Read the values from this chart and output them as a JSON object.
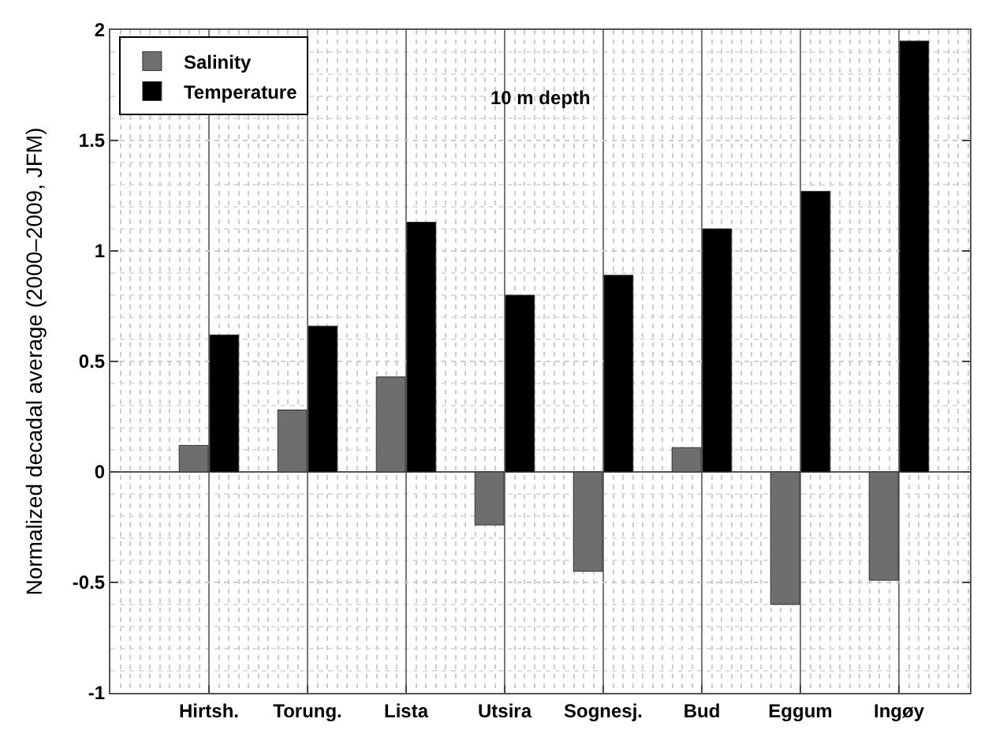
{
  "chart_data": {
    "type": "bar",
    "ylabel": "Normalized decadal average (2000–2009, JFM)",
    "annotations": [
      "10 m depth"
    ],
    "categories": [
      "Hirtsh.",
      "Torung.",
      "Lista",
      "Utsira",
      "Sognesj.",
      "Bud",
      "Eggum",
      "Ingøy"
    ],
    "series": [
      {
        "name": "Salinity",
        "color": "#6e6e6e",
        "values": [
          0.12,
          0.28,
          0.43,
          -0.24,
          -0.45,
          0.11,
          -0.6,
          -0.49
        ]
      },
      {
        "name": "Temperature",
        "color": "#000000",
        "values": [
          0.62,
          0.66,
          1.13,
          0.8,
          0.89,
          1.1,
          1.27,
          1.95
        ]
      }
    ],
    "ylim": [
      -1,
      2
    ],
    "yticks": [
      -1,
      -0.5,
      0,
      0.5,
      1,
      1.5,
      2
    ],
    "grid": true,
    "legend": "top left"
  }
}
